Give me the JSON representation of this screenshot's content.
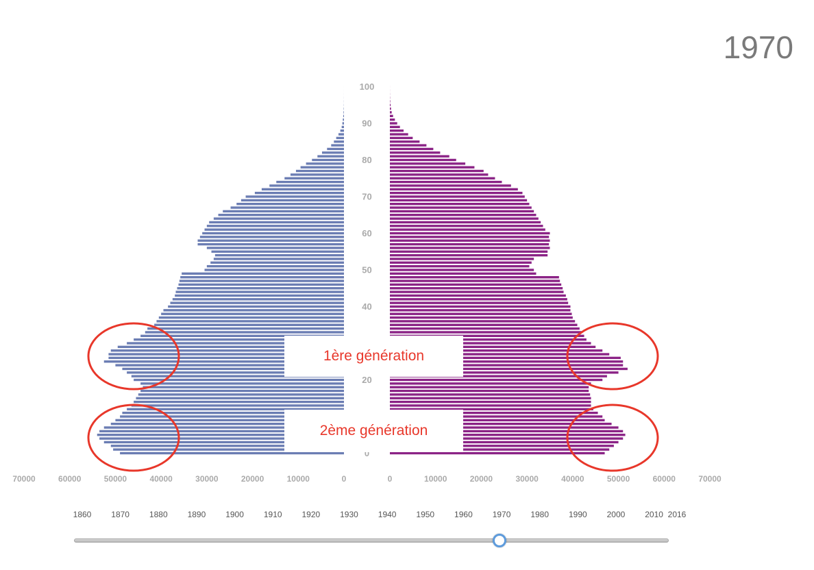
{
  "year_display": "1970",
  "generation_labels": {
    "first": "1ère génération",
    "second": "2ème génération"
  },
  "colors": {
    "male": "#6b7db3",
    "female": "#8b2386",
    "annotation": "#e8372a"
  },
  "timeline": {
    "years": [
      "1860",
      "1870",
      "1880",
      "1890",
      "1900",
      "1910",
      "1920",
      "1930",
      "1940",
      "1950",
      "1960",
      "1970",
      "1980",
      "1990",
      "2000",
      "2010",
      "2016"
    ],
    "selected": 1970,
    "min": 1860,
    "max": 2016
  },
  "chart_data": {
    "type": "bar",
    "orientation": "horizontal-pyramid",
    "age_ticks": [
      "0",
      "10",
      "20",
      "30",
      "40",
      "50",
      "60",
      "70",
      "80",
      "90",
      "100"
    ],
    "x_ticks_left": [
      "70000",
      "60000",
      "50000",
      "40000",
      "30000",
      "20000",
      "10000",
      "0"
    ],
    "x_ticks_right": [
      "0",
      "10000",
      "20000",
      "30000",
      "40000",
      "50000",
      "60000",
      "70000"
    ],
    "xlim": [
      0,
      70000
    ],
    "ages": [
      0,
      1,
      2,
      3,
      4,
      5,
      6,
      7,
      8,
      9,
      10,
      11,
      12,
      13,
      14,
      15,
      16,
      17,
      18,
      19,
      20,
      21,
      22,
      23,
      24,
      25,
      26,
      27,
      28,
      29,
      30,
      31,
      32,
      33,
      34,
      35,
      36,
      37,
      38,
      39,
      40,
      41,
      42,
      43,
      44,
      45,
      46,
      47,
      48,
      49,
      50,
      51,
      52,
      53,
      54,
      55,
      56,
      57,
      58,
      59,
      60,
      61,
      62,
      63,
      64,
      65,
      66,
      67,
      68,
      69,
      70,
      71,
      72,
      73,
      74,
      75,
      76,
      77,
      78,
      79,
      80,
      81,
      82,
      83,
      84,
      85,
      86,
      87,
      88,
      89,
      90,
      91,
      92,
      93,
      94,
      95,
      96,
      97,
      98,
      99,
      100
    ],
    "series": [
      {
        "values": [
          49000,
          50500,
          51000,
          52500,
          53500,
          54000,
          53500,
          52500,
          51000,
          50000,
          49000,
          48500,
          47500,
          46500,
          46000,
          45500,
          45000,
          44500,
          44000,
          44500,
          46000,
          46500,
          47500,
          48500,
          50000,
          52500,
          51500,
          51500,
          51000,
          49500,
          47500,
          46000,
          44500,
          43500,
          43000,
          41500,
          41000,
          40500,
          40000,
          39500,
          38500,
          38000,
          37500,
          37000,
          36800,
          36500,
          36200,
          36000,
          35800,
          35500,
          30500,
          30000,
          29200,
          28500,
          28200,
          29000,
          30000,
          32000,
          32000,
          31500,
          31000,
          30500,
          30000,
          29500,
          28500,
          27500,
          26500,
          24800,
          23500,
          22500,
          21500,
          19500,
          18000,
          16300,
          14800,
          13000,
          11700,
          10500,
          9500,
          8300,
          7000,
          5800,
          4800,
          3700,
          2800,
          2200,
          1700,
          1200,
          800,
          500,
          350,
          250,
          150,
          100,
          60,
          30,
          20,
          10,
          5,
          3,
          2
        ]
      },
      {
        "values": [
          47000,
          48000,
          49000,
          50000,
          51000,
          51500,
          51000,
          50000,
          48500,
          47000,
          46500,
          45500,
          44500,
          44000,
          44000,
          44000,
          43800,
          43500,
          43500,
          44000,
          46500,
          47500,
          50000,
          52000,
          51000,
          51000,
          50500,
          48000,
          46500,
          45000,
          44000,
          43000,
          42500,
          42000,
          41500,
          41000,
          40500,
          40000,
          39800,
          39500,
          39500,
          39000,
          38800,
          38500,
          38000,
          37800,
          37500,
          37200,
          37000,
          32000,
          31500,
          30500,
          31000,
          31500,
          34500,
          34500,
          35000,
          34800,
          35000,
          34800,
          35000,
          34000,
          33500,
          33000,
          32500,
          32000,
          31500,
          31000,
          30500,
          30000,
          29500,
          29000,
          28000,
          26500,
          24500,
          23000,
          21500,
          20500,
          18500,
          16500,
          14500,
          13000,
          11000,
          9500,
          8000,
          6500,
          5000,
          4000,
          3000,
          2200,
          1600,
          1100,
          700,
          400,
          250,
          150,
          80,
          40,
          20,
          10,
          5
        ]
      }
    ]
  }
}
